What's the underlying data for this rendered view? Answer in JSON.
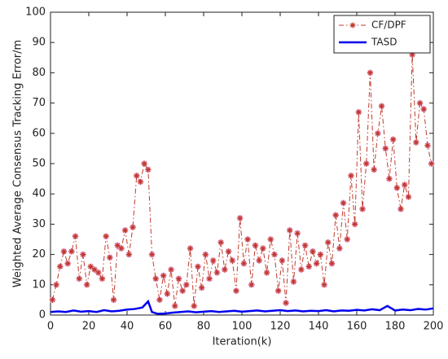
{
  "chart_data": {
    "type": "line",
    "xlabel": "Iteration(k)",
    "ylabel": "Weighted Average Consensus Tracking Error/m",
    "xlim": [
      0,
      200
    ],
    "xticks": [
      0,
      20,
      40,
      60,
      80,
      100,
      120,
      140,
      160,
      180,
      200
    ],
    "ylim": [
      0,
      100
    ],
    "yticks": [
      0,
      10,
      20,
      30,
      40,
      50,
      60,
      70,
      80,
      90,
      100
    ],
    "legend": "upper right",
    "series": [
      {
        "name": "CF/DPF",
        "color": "#c0392b",
        "marker": "asterisk",
        "linestyle": "dashdot",
        "x": [
          1,
          3,
          5,
          7,
          9,
          11,
          13,
          15,
          17,
          19,
          21,
          23,
          25,
          27,
          29,
          31,
          33,
          35,
          37,
          39,
          41,
          43,
          45,
          47,
          49,
          51,
          53,
          55,
          57,
          59,
          61,
          63,
          65,
          67,
          69,
          71,
          73,
          75,
          77,
          79,
          81,
          83,
          85,
          87,
          89,
          91,
          93,
          95,
          97,
          99,
          101,
          103,
          105,
          107,
          109,
          111,
          113,
          115,
          117,
          119,
          121,
          123,
          125,
          127,
          129,
          131,
          133,
          135,
          137,
          139,
          141,
          143,
          145,
          147,
          149,
          151,
          153,
          155,
          157,
          159,
          161,
          163,
          165,
          167,
          169,
          171,
          173,
          175,
          177,
          179,
          181,
          183,
          185,
          187,
          189,
          191,
          193,
          195,
          197,
          199
        ],
        "values": [
          5,
          10,
          16,
          21,
          17,
          21,
          26,
          12,
          20,
          10,
          16,
          15,
          14,
          12,
          26,
          19,
          5,
          23,
          22,
          28,
          20,
          29,
          46,
          44,
          50,
          48,
          20,
          12,
          5,
          13,
          7,
          15,
          3,
          12,
          8,
          10,
          22,
          3,
          16,
          9,
          20,
          12,
          18,
          14,
          24,
          15,
          21,
          18,
          8,
          32,
          17,
          25,
          10,
          23,
          18,
          22,
          14,
          25,
          20,
          8,
          18,
          4,
          28,
          11,
          27,
          15,
          23,
          16,
          21,
          17,
          20,
          10,
          24,
          17,
          33,
          22,
          37,
          25,
          46,
          30,
          67,
          35,
          50,
          80,
          48,
          60,
          69,
          55,
          45,
          58,
          42,
          35,
          43,
          39,
          86,
          57,
          70,
          68,
          56,
          50
        ]
      },
      {
        "name": "TASD",
        "color": "#0000ee",
        "linestyle": "solid",
        "x": [
          0,
          4,
          8,
          12,
          16,
          20,
          24,
          28,
          32,
          36,
          40,
          44,
          48,
          51,
          53,
          56,
          60,
          64,
          68,
          72,
          76,
          80,
          84,
          88,
          92,
          96,
          100,
          104,
          108,
          112,
          116,
          120,
          124,
          128,
          132,
          136,
          140,
          144,
          148,
          152,
          156,
          160,
          164,
          168,
          172,
          176,
          180,
          184,
          188,
          192,
          196,
          200
        ],
        "values": [
          1,
          1.2,
          1.0,
          1.5,
          1.1,
          1.3,
          1.0,
          1.6,
          1.2,
          1.4,
          1.8,
          2.0,
          2.5,
          4.5,
          1.0,
          0.4,
          0.5,
          0.8,
          1.0,
          1.2,
          0.9,
          1.1,
          1.3,
          1.0,
          1.2,
          1.4,
          1.1,
          1.3,
          1.5,
          1.2,
          1.4,
          1.6,
          1.3,
          1.5,
          1.2,
          1.4,
          1.3,
          1.6,
          1.2,
          1.5,
          1.4,
          1.7,
          1.5,
          1.9,
          1.6,
          3.0,
          1.5,
          1.8,
          1.6,
          2.0,
          1.8,
          2.2
        ]
      }
    ]
  }
}
